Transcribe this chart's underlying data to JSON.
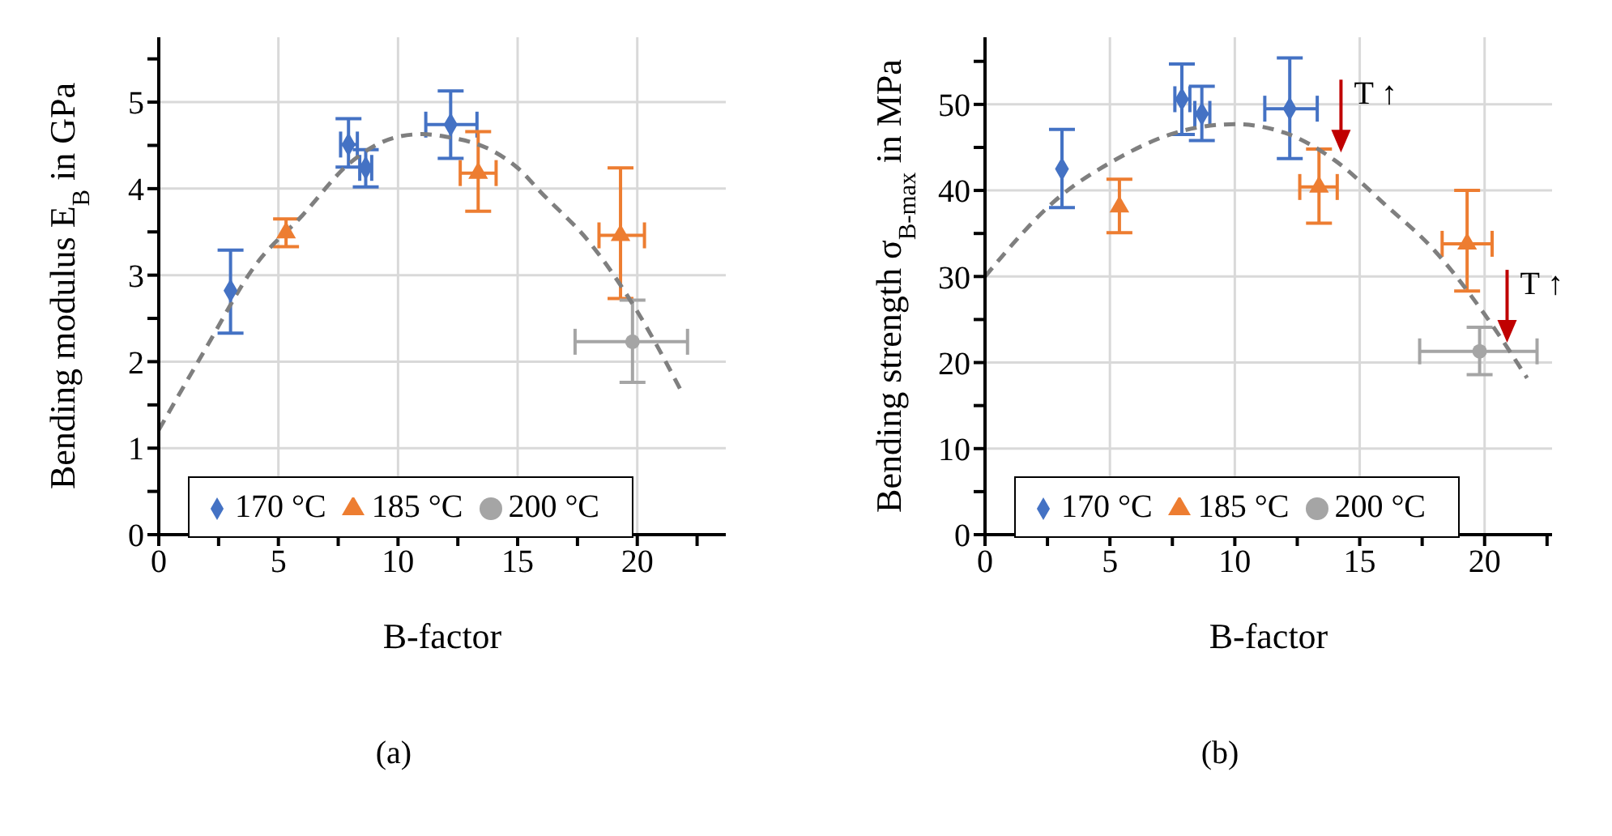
{
  "chart_data": [
    {
      "type": "scatter",
      "title": "(a)",
      "xlabel": "B-factor",
      "ylabel": "Bending modulus E$_{B}$ in GPa",
      "xlim": [
        0,
        23.7
      ],
      "ylim": [
        0,
        5.75
      ],
      "xticks": [
        0,
        {
          "value": 2.5,
          "label": null
        },
        5,
        {
          "value": 7.5,
          "label": null
        },
        10,
        {
          "value": 12.5,
          "label": null
        },
        15,
        {
          "value": 17.5,
          "label": null
        },
        20,
        {
          "value": 22.5,
          "label": null
        }
      ],
      "yticks": [
        0,
        {
          "value": 0.5,
          "label": null
        },
        1,
        {
          "value": 1.5,
          "label": null
        },
        2,
        {
          "value": 2.5,
          "label": null
        },
        3,
        {
          "value": 3.5,
          "label": null
        },
        4,
        {
          "value": 4.5,
          "label": null
        },
        5,
        {
          "value": 5.5,
          "label": null
        }
      ],
      "grid": true,
      "legend": "bottom",
      "series": [
        {
          "name": "170 °C",
          "color": "#4472c4",
          "marker": "diamond",
          "x": [
            3.0,
            7.93,
            8.65,
            12.2
          ],
          "values": [
            2.82,
            4.51,
            4.24,
            4.74
          ],
          "errors": [
            [
              2.33,
              3.29
            ],
            [
              4.25,
              4.81
            ],
            [
              4.02,
              4.45
            ],
            [
              4.35,
              5.13
            ]
          ],
          "xerrors": [
            null,
            [
              7.6,
              8.3
            ],
            [
              8.4,
              8.9
            ],
            [
              11.16,
              13.3
            ]
          ]
        },
        {
          "name": "185 °C",
          "color": "#ed7d31",
          "marker": "triangle",
          "x": [
            5.32,
            13.35,
            19.3
          ],
          "values": [
            3.49,
            4.18,
            3.46
          ],
          "errors": [
            [
              3.33,
              3.65
            ],
            [
              3.74,
              4.66
            ],
            [
              2.73,
              4.24
            ]
          ],
          "xerrors": [
            null,
            [
              12.6,
              14.1
            ],
            [
              18.4,
              20.3
            ]
          ]
        },
        {
          "name": "200 °C",
          "color": "#a5a5a5",
          "marker": "circle",
          "x": [
            19.8
          ],
          "values": [
            2.23
          ],
          "errors": [
            [
              1.76,
              2.71
            ]
          ],
          "xerrors": [
            [
              17.4,
              22.1
            ]
          ]
        },
        {
          "type": "line",
          "color": "#7f7f7f",
          "line_style": "dashed",
          "marker": "none",
          "x": [
            0,
            2,
            4,
            6,
            8,
            10,
            11,
            12,
            14,
            15,
            16,
            18,
            20,
            21.8
          ],
          "values": [
            1.21,
            2.17,
            3.1,
            3.69,
            4.3,
            4.6,
            4.63,
            4.6,
            4.43,
            4.24,
            3.95,
            3.38,
            2.58,
            1.68
          ]
        }
      ]
    },
    {
      "type": "scatter",
      "title": "(b)",
      "xlabel": "B-factor",
      "ylabel": "Bending strength σ$_{B-max}$ in MPa",
      "xlim": [
        0,
        22.7
      ],
      "ylim": [
        0,
        57.8
      ],
      "xticks": [
        0,
        {
          "value": 2.5,
          "label": null
        },
        5,
        {
          "value": 7.5,
          "label": null
        },
        10,
        {
          "value": 12.5,
          "label": null
        },
        15,
        {
          "value": 17.5,
          "label": null
        },
        20,
        {
          "value": 22.5,
          "label": null
        }
      ],
      "yticks": [
        0,
        {
          "value": 5,
          "label": null
        },
        10,
        {
          "value": 15,
          "label": null
        },
        20,
        {
          "value": 25,
          "label": null
        },
        30,
        {
          "value": 35,
          "label": null
        },
        40,
        {
          "value": 45,
          "label": null
        },
        50,
        {
          "value": 55,
          "label": null
        }
      ],
      "grid": true,
      "legend": "bottom",
      "annotations": [
        {
          "text": "T ↑",
          "x": 14.25,
          "y": 44.4
        },
        {
          "text": "T ↑",
          "x": 20.9,
          "y": 22.3
        }
      ],
      "series": [
        {
          "name": "170 °C",
          "color": "#4472c4",
          "marker": "diamond",
          "x": [
            3.08,
            7.88,
            8.68,
            12.2
          ],
          "values": [
            42.5,
            50.6,
            48.9,
            49.5
          ],
          "errors": [
            [
              38.0,
              47.1
            ],
            [
              46.5,
              54.7
            ],
            [
              45.8,
              52.1
            ],
            [
              43.7,
              55.4
            ]
          ],
          "xerrors": [
            null,
            [
              7.6,
              8.2
            ],
            [
              8.4,
              9.0
            ],
            [
              11.2,
              13.3
            ]
          ]
        },
        {
          "name": "185 °C",
          "color": "#ed7d31",
          "marker": "triangle",
          "x": [
            5.38,
            13.37,
            19.3
          ],
          "values": [
            38.1,
            40.4,
            33.8
          ],
          "errors": [
            [
              35.1,
              41.3
            ],
            [
              36.2,
              44.8
            ],
            [
              28.3,
              40.0
            ]
          ],
          "xerrors": [
            null,
            [
              12.6,
              14.1
            ],
            [
              18.3,
              20.3
            ]
          ]
        },
        {
          "name": "200 °C",
          "color": "#a5a5a5",
          "marker": "circle",
          "x": [
            19.8
          ],
          "values": [
            21.3
          ],
          "errors": [
            [
              18.6,
              24.1
            ]
          ],
          "xerrors": [
            [
              17.4,
              22.1
            ]
          ]
        },
        {
          "type": "line",
          "color": "#7f7f7f",
          "line_style": "dashed",
          "marker": "none",
          "x": [
            0,
            3,
            5,
            8,
            10,
            12,
            14,
            16,
            18,
            20,
            21.7
          ],
          "values": [
            30,
            39.3,
            43.2,
            47,
            47.7,
            46.7,
            43.5,
            38.4,
            33,
            25.6,
            18.2
          ]
        }
      ]
    }
  ]
}
